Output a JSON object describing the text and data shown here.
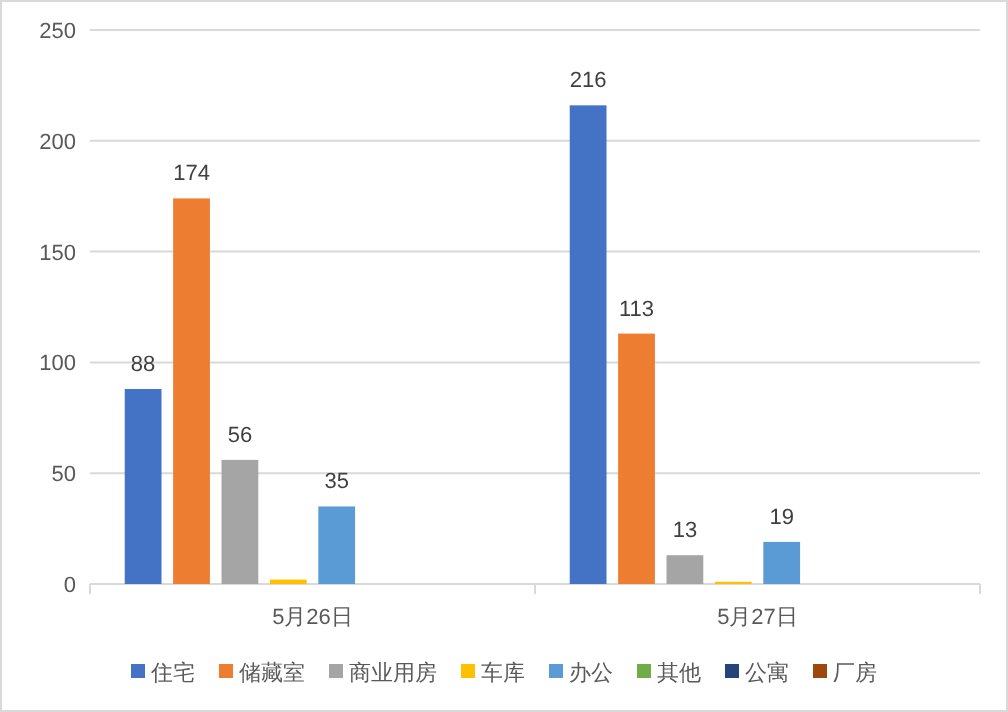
{
  "chart_data": {
    "type": "bar",
    "categories": [
      "5月26日",
      "5月27日"
    ],
    "series": [
      {
        "name": "住宅",
        "color": "#4472c4",
        "values": [
          88,
          216
        ],
        "value_labels": [
          "88",
          "216"
        ]
      },
      {
        "name": "储藏室",
        "color": "#ed7d31",
        "values": [
          174,
          113
        ],
        "value_labels": [
          "174",
          "113"
        ]
      },
      {
        "name": "商业用房",
        "color": "#a5a5a5",
        "values": [
          56,
          13
        ],
        "value_labels": [
          "56",
          "13"
        ]
      },
      {
        "name": "车库",
        "color": "#ffc000",
        "values": [
          2,
          1
        ],
        "value_labels": [
          null,
          null
        ]
      },
      {
        "name": "办公",
        "color": "#5b9bd5",
        "values": [
          35,
          19
        ],
        "value_labels": [
          "35",
          "19"
        ]
      },
      {
        "name": "其他",
        "color": "#70ad47",
        "values": [
          0,
          0
        ],
        "value_labels": [
          null,
          null
        ]
      },
      {
        "name": "公寓",
        "color": "#264478",
        "values": [
          0,
          0
        ],
        "value_labels": [
          null,
          null
        ]
      },
      {
        "name": "厂房",
        "color": "#9e480e",
        "values": [
          0,
          0
        ],
        "value_labels": [
          null,
          null
        ]
      }
    ],
    "ylim": [
      0,
      250
    ],
    "yticks": [
      0,
      50,
      100,
      150,
      200,
      250
    ],
    "grid": "y",
    "legend": "bottom"
  }
}
